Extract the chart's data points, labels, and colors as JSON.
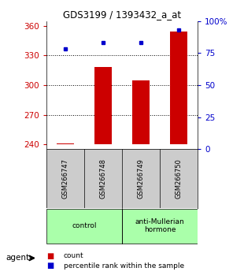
{
  "title": "GDS3199 / 1393432_a_at",
  "samples": [
    "GSM266747",
    "GSM266748",
    "GSM266749",
    "GSM266750"
  ],
  "bar_values": [
    241,
    318,
    305,
    354
  ],
  "percentile_values": [
    78,
    83,
    83,
    93
  ],
  "bar_color": "#cc0000",
  "percentile_color": "#0000cc",
  "bar_bottom": 240,
  "ylim_left": [
    235,
    365
  ],
  "ylim_right": [
    0,
    100
  ],
  "yticks_left": [
    240,
    270,
    300,
    330,
    360
  ],
  "yticks_right": [
    0,
    25,
    50,
    75,
    100
  ],
  "ytick_labels_right": [
    "0",
    "25",
    "50",
    "75",
    "100%"
  ],
  "agent_label": "agent",
  "legend_count_label": "count",
  "legend_percentile_label": "percentile rank within the sample",
  "left_tick_color": "#cc0000",
  "right_tick_color": "#0000cc",
  "grid_color": "#000000",
  "bg_plot": "#ffffff",
  "bg_sample_labels": "#cccccc",
  "bg_group_labels": "#aaffaa",
  "dotted_lines": [
    270,
    300,
    330
  ]
}
